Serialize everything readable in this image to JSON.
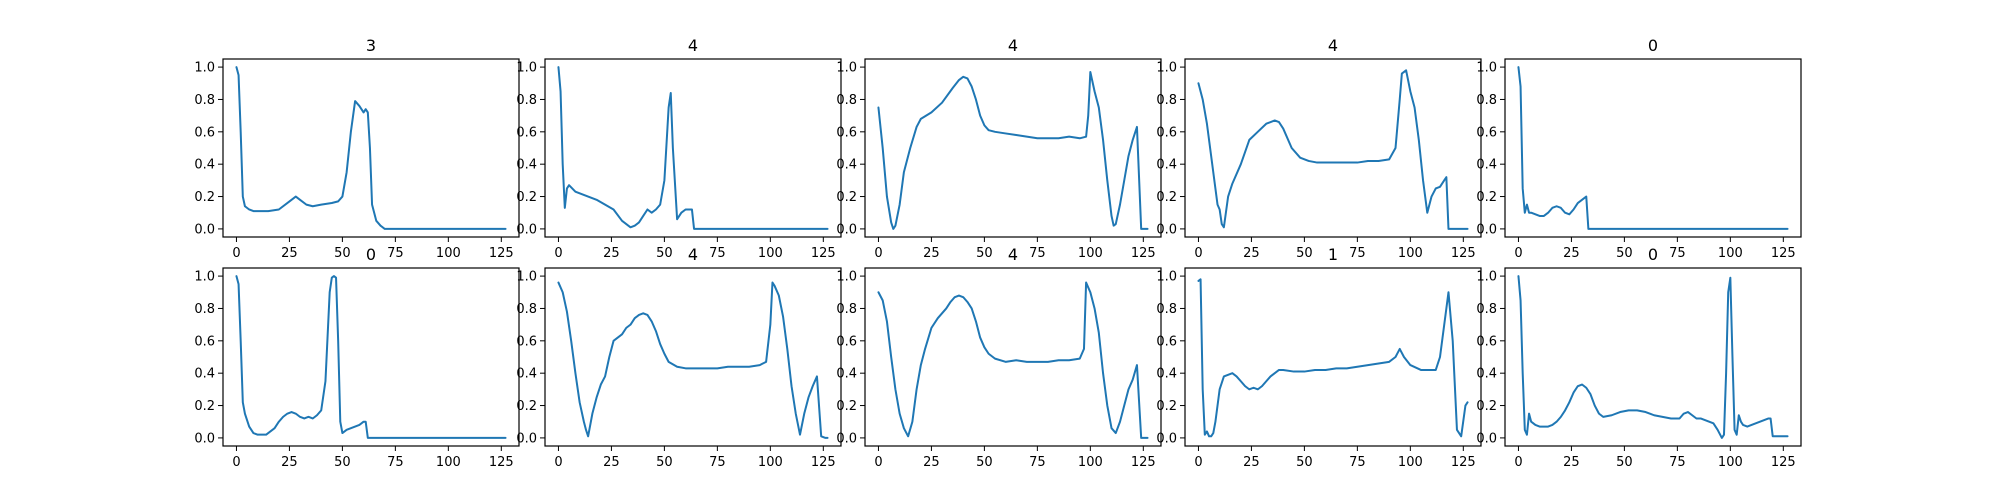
{
  "chart_data": [
    {
      "type": "line",
      "title": "3",
      "xlim": [
        0,
        127
      ],
      "ylim": [
        0,
        1.0
      ],
      "color": "#1f77b4",
      "xticks": [
        0,
        25,
        50,
        75,
        100,
        125
      ],
      "yticks": [
        0.0,
        0.2,
        0.4,
        0.6,
        0.8,
        1.0
      ],
      "x": [
        0,
        1,
        2,
        3,
        4,
        6,
        8,
        10,
        15,
        20,
        25,
        28,
        30,
        33,
        36,
        40,
        45,
        48,
        50,
        52,
        54,
        56,
        58,
        60,
        61,
        62,
        63,
        64,
        66,
        68,
        70,
        75,
        100,
        127
      ],
      "y": [
        1.0,
        0.95,
        0.6,
        0.2,
        0.14,
        0.12,
        0.11,
        0.11,
        0.11,
        0.12,
        0.17,
        0.2,
        0.18,
        0.15,
        0.14,
        0.15,
        0.16,
        0.17,
        0.2,
        0.35,
        0.6,
        0.79,
        0.76,
        0.72,
        0.74,
        0.72,
        0.5,
        0.15,
        0.05,
        0.02,
        0.0,
        0.0,
        0.0,
        0.0
      ]
    },
    {
      "type": "line",
      "title": "4",
      "xlim": [
        0,
        127
      ],
      "ylim": [
        0,
        1.0
      ],
      "color": "#1f77b4",
      "xticks": [
        0,
        25,
        50,
        75,
        100,
        125
      ],
      "yticks": [
        0.0,
        0.2,
        0.4,
        0.6,
        0.8,
        1.0
      ],
      "x": [
        0,
        1,
        2,
        3,
        4,
        5,
        8,
        10,
        14,
        18,
        22,
        26,
        30,
        32,
        34,
        36,
        38,
        40,
        42,
        44,
        46,
        48,
        50,
        52,
        53,
        54,
        56,
        58,
        60,
        62,
        63,
        64,
        70,
        100,
        127
      ],
      "y": [
        1.0,
        0.85,
        0.4,
        0.13,
        0.25,
        0.27,
        0.23,
        0.22,
        0.2,
        0.18,
        0.15,
        0.12,
        0.05,
        0.03,
        0.01,
        0.02,
        0.04,
        0.08,
        0.12,
        0.1,
        0.12,
        0.15,
        0.3,
        0.75,
        0.84,
        0.5,
        0.06,
        0.1,
        0.12,
        0.12,
        0.12,
        0.0,
        0.0,
        0.0,
        0.0
      ]
    },
    {
      "type": "line",
      "title": "4",
      "xlim": [
        0,
        127
      ],
      "ylim": [
        0,
        1.0
      ],
      "color": "#1f77b4",
      "xticks": [
        0,
        25,
        50,
        75,
        100,
        125
      ],
      "yticks": [
        0.0,
        0.2,
        0.4,
        0.6,
        0.8,
        1.0
      ],
      "x": [
        0,
        2,
        4,
        6,
        7,
        8,
        10,
        12,
        15,
        18,
        20,
        25,
        30,
        35,
        38,
        40,
        42,
        44,
        46,
        48,
        50,
        52,
        55,
        60,
        65,
        70,
        75,
        80,
        85,
        90,
        95,
        98,
        99,
        100,
        102,
        104,
        106,
        108,
        110,
        111,
        112,
        114,
        116,
        118,
        120,
        122,
        124,
        127
      ],
      "y": [
        0.75,
        0.5,
        0.2,
        0.04,
        0.0,
        0.02,
        0.15,
        0.35,
        0.5,
        0.63,
        0.68,
        0.72,
        0.78,
        0.87,
        0.92,
        0.94,
        0.93,
        0.88,
        0.8,
        0.7,
        0.64,
        0.61,
        0.6,
        0.59,
        0.58,
        0.57,
        0.56,
        0.56,
        0.56,
        0.57,
        0.56,
        0.57,
        0.7,
        0.97,
        0.85,
        0.75,
        0.55,
        0.3,
        0.08,
        0.02,
        0.03,
        0.15,
        0.3,
        0.45,
        0.55,
        0.63,
        0.0,
        0.0
      ]
    },
    {
      "type": "line",
      "title": "4",
      "xlim": [
        0,
        127
      ],
      "ylim": [
        0,
        1.0
      ],
      "color": "#1f77b4",
      "xticks": [
        0,
        25,
        50,
        75,
        100,
        125
      ],
      "yticks": [
        0.0,
        0.2,
        0.4,
        0.6,
        0.8,
        1.0
      ],
      "x": [
        0,
        2,
        4,
        6,
        8,
        9,
        10,
        11,
        12,
        14,
        16,
        20,
        24,
        28,
        32,
        36,
        38,
        40,
        44,
        48,
        52,
        56,
        60,
        65,
        70,
        75,
        80,
        85,
        90,
        93,
        95,
        96,
        98,
        100,
        102,
        104,
        106,
        108,
        110,
        112,
        114,
        116,
        117,
        118,
        127
      ],
      "y": [
        0.9,
        0.8,
        0.65,
        0.45,
        0.25,
        0.15,
        0.12,
        0.03,
        0.01,
        0.2,
        0.28,
        0.4,
        0.55,
        0.6,
        0.65,
        0.67,
        0.66,
        0.62,
        0.5,
        0.44,
        0.42,
        0.41,
        0.41,
        0.41,
        0.41,
        0.41,
        0.42,
        0.42,
        0.43,
        0.5,
        0.8,
        0.96,
        0.98,
        0.85,
        0.75,
        0.55,
        0.3,
        0.1,
        0.2,
        0.25,
        0.26,
        0.3,
        0.32,
        0.0,
        0.0
      ]
    },
    {
      "type": "line",
      "title": "0",
      "xlim": [
        0,
        127
      ],
      "ylim": [
        0,
        1.0
      ],
      "color": "#1f77b4",
      "xticks": [
        0,
        25,
        50,
        75,
        100,
        125
      ],
      "yticks": [
        0.0,
        0.2,
        0.4,
        0.6,
        0.8,
        1.0
      ],
      "x": [
        0,
        1,
        2,
        3,
        4,
        5,
        6,
        8,
        10,
        12,
        14,
        16,
        18,
        20,
        22,
        24,
        26,
        28,
        30,
        32,
        33,
        34,
        40,
        100,
        127
      ],
      "y": [
        1.0,
        0.88,
        0.25,
        0.1,
        0.15,
        0.1,
        0.1,
        0.09,
        0.08,
        0.08,
        0.1,
        0.13,
        0.14,
        0.13,
        0.1,
        0.09,
        0.12,
        0.16,
        0.18,
        0.2,
        0.0,
        0.0,
        0.0,
        0.0,
        0.0
      ]
    },
    {
      "type": "line",
      "title": "0",
      "xlim": [
        0,
        127
      ],
      "ylim": [
        0,
        1.0
      ],
      "color": "#1f77b4",
      "xticks": [
        0,
        25,
        50,
        75,
        100,
        125
      ],
      "yticks": [
        0.0,
        0.2,
        0.4,
        0.6,
        0.8,
        1.0
      ],
      "x": [
        0,
        1,
        2,
        3,
        4,
        6,
        8,
        10,
        12,
        14,
        16,
        18,
        20,
        22,
        24,
        26,
        28,
        30,
        32,
        34,
        36,
        38,
        40,
        42,
        44,
        45,
        46,
        47,
        48,
        49,
        50,
        52,
        54,
        56,
        58,
        60,
        61,
        62,
        70,
        100,
        127
      ],
      "y": [
        1.0,
        0.95,
        0.6,
        0.22,
        0.15,
        0.07,
        0.03,
        0.02,
        0.02,
        0.02,
        0.04,
        0.06,
        0.1,
        0.13,
        0.15,
        0.16,
        0.15,
        0.13,
        0.12,
        0.13,
        0.12,
        0.14,
        0.17,
        0.35,
        0.9,
        0.99,
        1.0,
        0.99,
        0.6,
        0.1,
        0.03,
        0.05,
        0.06,
        0.07,
        0.08,
        0.1,
        0.1,
        0.0,
        0.0,
        0.0,
        0.0
      ]
    },
    {
      "type": "line",
      "title": "4",
      "xlim": [
        0,
        127
      ],
      "ylim": [
        0,
        1.0
      ],
      "color": "#1f77b4",
      "xticks": [
        0,
        25,
        50,
        75,
        100,
        125
      ],
      "yticks": [
        0.0,
        0.2,
        0.4,
        0.6,
        0.8,
        1.0
      ],
      "x": [
        0,
        2,
        4,
        6,
        8,
        10,
        12,
        13,
        14,
        16,
        18,
        20,
        22,
        24,
        26,
        28,
        30,
        32,
        34,
        36,
        38,
        40,
        42,
        44,
        46,
        48,
        50,
        52,
        56,
        60,
        65,
        70,
        75,
        80,
        85,
        90,
        95,
        98,
        100,
        101,
        102,
        104,
        106,
        108,
        110,
        112,
        114,
        116,
        118,
        120,
        122,
        124,
        126,
        127
      ],
      "y": [
        0.96,
        0.9,
        0.78,
        0.6,
        0.4,
        0.22,
        0.1,
        0.05,
        0.01,
        0.15,
        0.25,
        0.33,
        0.38,
        0.5,
        0.6,
        0.62,
        0.64,
        0.68,
        0.7,
        0.74,
        0.76,
        0.77,
        0.76,
        0.72,
        0.66,
        0.58,
        0.52,
        0.47,
        0.44,
        0.43,
        0.43,
        0.43,
        0.43,
        0.44,
        0.44,
        0.44,
        0.45,
        0.47,
        0.7,
        0.96,
        0.94,
        0.88,
        0.75,
        0.55,
        0.32,
        0.15,
        0.02,
        0.15,
        0.25,
        0.32,
        0.38,
        0.01,
        0.0,
        0.0
      ]
    },
    {
      "type": "line",
      "title": "4",
      "xlim": [
        0,
        127
      ],
      "ylim": [
        0,
        1.0
      ],
      "color": "#1f77b4",
      "xticks": [
        0,
        25,
        50,
        75,
        100,
        125
      ],
      "yticks": [
        0.0,
        0.2,
        0.4,
        0.6,
        0.8,
        1.0
      ],
      "x": [
        0,
        2,
        4,
        6,
        8,
        10,
        12,
        14,
        16,
        18,
        20,
        22,
        25,
        28,
        30,
        32,
        34,
        36,
        38,
        40,
        42,
        44,
        46,
        48,
        50,
        52,
        55,
        60,
        65,
        70,
        75,
        80,
        85,
        90,
        95,
        97,
        98,
        100,
        102,
        104,
        106,
        108,
        110,
        112,
        114,
        116,
        118,
        120,
        122,
        124,
        126,
        127
      ],
      "y": [
        0.9,
        0.85,
        0.72,
        0.5,
        0.3,
        0.15,
        0.06,
        0.01,
        0.1,
        0.3,
        0.45,
        0.55,
        0.68,
        0.74,
        0.77,
        0.8,
        0.84,
        0.87,
        0.88,
        0.87,
        0.84,
        0.8,
        0.72,
        0.62,
        0.56,
        0.52,
        0.49,
        0.47,
        0.48,
        0.47,
        0.47,
        0.47,
        0.48,
        0.48,
        0.49,
        0.55,
        0.96,
        0.9,
        0.8,
        0.65,
        0.4,
        0.2,
        0.06,
        0.03,
        0.1,
        0.2,
        0.3,
        0.36,
        0.45,
        0.0,
        0.0,
        0.0
      ]
    },
    {
      "type": "line",
      "title": "1",
      "xlim": [
        0,
        127
      ],
      "ylim": [
        0,
        1.0
      ],
      "color": "#1f77b4",
      "xticks": [
        0,
        25,
        50,
        75,
        100,
        125
      ],
      "yticks": [
        0.0,
        0.2,
        0.4,
        0.6,
        0.8,
        1.0
      ],
      "x": [
        0,
        1,
        2,
        3,
        4,
        5,
        6,
        7,
        8,
        10,
        12,
        14,
        16,
        18,
        20,
        22,
        24,
        26,
        28,
        30,
        32,
        34,
        36,
        38,
        40,
        45,
        50,
        55,
        60,
        65,
        70,
        75,
        80,
        85,
        90,
        93,
        95,
        97,
        100,
        105,
        110,
        112,
        114,
        116,
        118,
        120,
        122,
        124,
        126,
        127
      ],
      "y": [
        0.97,
        0.98,
        0.3,
        0.02,
        0.04,
        0.01,
        0.01,
        0.03,
        0.1,
        0.3,
        0.38,
        0.39,
        0.4,
        0.38,
        0.35,
        0.32,
        0.3,
        0.31,
        0.3,
        0.32,
        0.35,
        0.38,
        0.4,
        0.42,
        0.42,
        0.41,
        0.41,
        0.42,
        0.42,
        0.43,
        0.43,
        0.44,
        0.45,
        0.46,
        0.47,
        0.5,
        0.55,
        0.5,
        0.45,
        0.42,
        0.42,
        0.42,
        0.5,
        0.7,
        0.9,
        0.6,
        0.05,
        0.01,
        0.2,
        0.22
      ]
    },
    {
      "type": "line",
      "title": "0",
      "xlim": [
        0,
        127
      ],
      "ylim": [
        0,
        1.0
      ],
      "color": "#1f77b4",
      "xticks": [
        0,
        25,
        50,
        75,
        100,
        125
      ],
      "yticks": [
        0.0,
        0.2,
        0.4,
        0.6,
        0.8,
        1.0
      ],
      "x": [
        0,
        1,
        2,
        3,
        4,
        5,
        6,
        8,
        10,
        12,
        14,
        16,
        18,
        20,
        22,
        24,
        26,
        28,
        30,
        32,
        34,
        36,
        38,
        40,
        44,
        48,
        52,
        56,
        60,
        64,
        68,
        72,
        76,
        78,
        80,
        82,
        84,
        86,
        88,
        90,
        92,
        94,
        96,
        97,
        98,
        99,
        100,
        101,
        102,
        103,
        104,
        105,
        106,
        108,
        110,
        112,
        114,
        116,
        118,
        119,
        120,
        127
      ],
      "y": [
        1.0,
        0.85,
        0.4,
        0.05,
        0.02,
        0.15,
        0.1,
        0.08,
        0.07,
        0.07,
        0.07,
        0.08,
        0.1,
        0.13,
        0.17,
        0.22,
        0.28,
        0.32,
        0.33,
        0.31,
        0.27,
        0.2,
        0.15,
        0.13,
        0.14,
        0.16,
        0.17,
        0.17,
        0.16,
        0.14,
        0.13,
        0.12,
        0.12,
        0.15,
        0.16,
        0.14,
        0.12,
        0.12,
        0.11,
        0.1,
        0.09,
        0.05,
        0.0,
        0.02,
        0.4,
        0.9,
        0.99,
        0.5,
        0.05,
        0.02,
        0.14,
        0.1,
        0.08,
        0.07,
        0.08,
        0.09,
        0.1,
        0.11,
        0.12,
        0.12,
        0.01,
        0.01
      ]
    }
  ]
}
